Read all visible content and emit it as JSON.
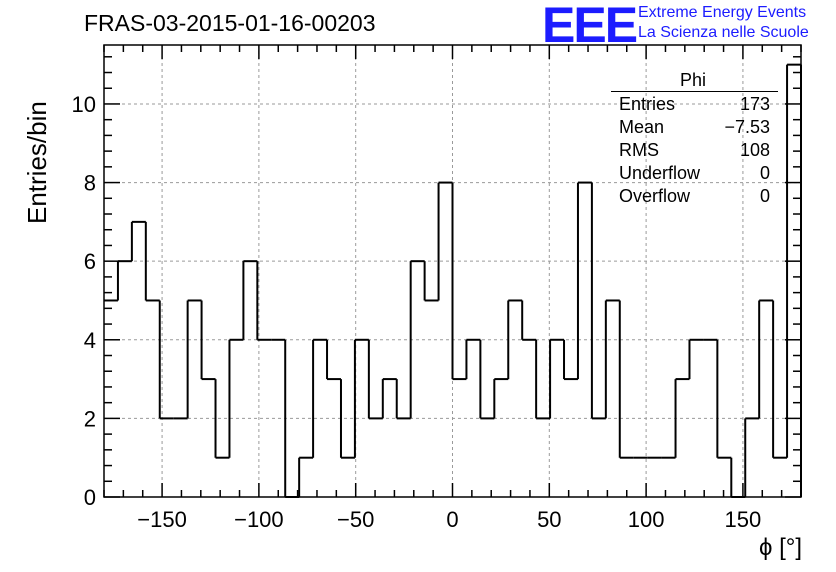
{
  "header": {
    "run_title": "FRAS-03-2015-01-16-00203",
    "logo_text": "EEE",
    "logo_line1": "Extreme Energy Events",
    "logo_line2": "La Scienza nelle Scuole"
  },
  "stats_box": {
    "title": "Phi",
    "rows": [
      {
        "label": "Entries",
        "value": "173"
      },
      {
        "label": "Mean",
        "value": "−7.53"
      },
      {
        "label": "RMS",
        "value": "108"
      },
      {
        "label": "Underflow",
        "value": "0"
      },
      {
        "label": "Overflow",
        "value": "0"
      }
    ]
  },
  "colors": {
    "logo": "#1c1cff",
    "line": "#000000",
    "grid": "#9a9a9a"
  },
  "chart_data": {
    "type": "histogram",
    "xlabel": "ϕ [°]",
    "ylabel": "Entries/bin",
    "xlim": [
      -180,
      180
    ],
    "ylim": [
      0,
      11.5
    ],
    "bin_width": 7.2,
    "bin_edges_start": -180,
    "values": [
      5,
      6,
      7,
      5,
      2,
      2,
      5,
      3,
      1,
      4,
      6,
      4,
      4,
      0,
      1,
      4,
      3,
      1,
      4,
      2,
      3,
      2,
      6,
      5,
      8,
      3,
      4,
      2,
      3,
      5,
      4,
      2,
      4,
      3,
      8,
      2,
      5,
      1,
      1,
      1,
      1,
      3,
      4,
      4,
      1,
      0,
      2,
      5,
      1,
      11
    ],
    "xticks": [
      -150,
      -100,
      -50,
      0,
      50,
      100,
      150
    ],
    "xtick_labels": [
      "−150",
      "−100",
      "−50",
      "0",
      "50",
      "100",
      "150"
    ],
    "yticks": [
      0,
      2,
      4,
      6,
      8,
      10
    ],
    "ytick_labels": [
      "0",
      "2",
      "4",
      "6",
      "8",
      "10"
    ],
    "grid": true
  }
}
